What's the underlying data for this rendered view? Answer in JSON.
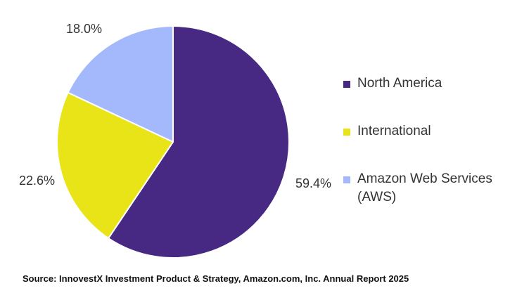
{
  "chart_data": {
    "type": "pie",
    "title": "",
    "slices": [
      {
        "name": "North America",
        "value": 59.4,
        "label": "59.4%",
        "color": "#472984"
      },
      {
        "name": "International",
        "value": 22.6,
        "label": "22.6%",
        "color": "#E8E418"
      },
      {
        "name": "Amazon Web Services (AWS)",
        "value": 18.0,
        "label": "18.0%",
        "color": "#A4B8FC"
      }
    ],
    "legend_position": "right"
  },
  "legend": {
    "items": [
      {
        "label": "North America",
        "color": "#472984"
      },
      {
        "label": "International",
        "color": "#E8E418"
      },
      {
        "label": "Amazon Web Services (AWS)",
        "color": "#A4B8FC"
      }
    ]
  },
  "source": "Source: InnovestX Investment Product & Strategy, Amazon.com, Inc. Annual Report 2025"
}
